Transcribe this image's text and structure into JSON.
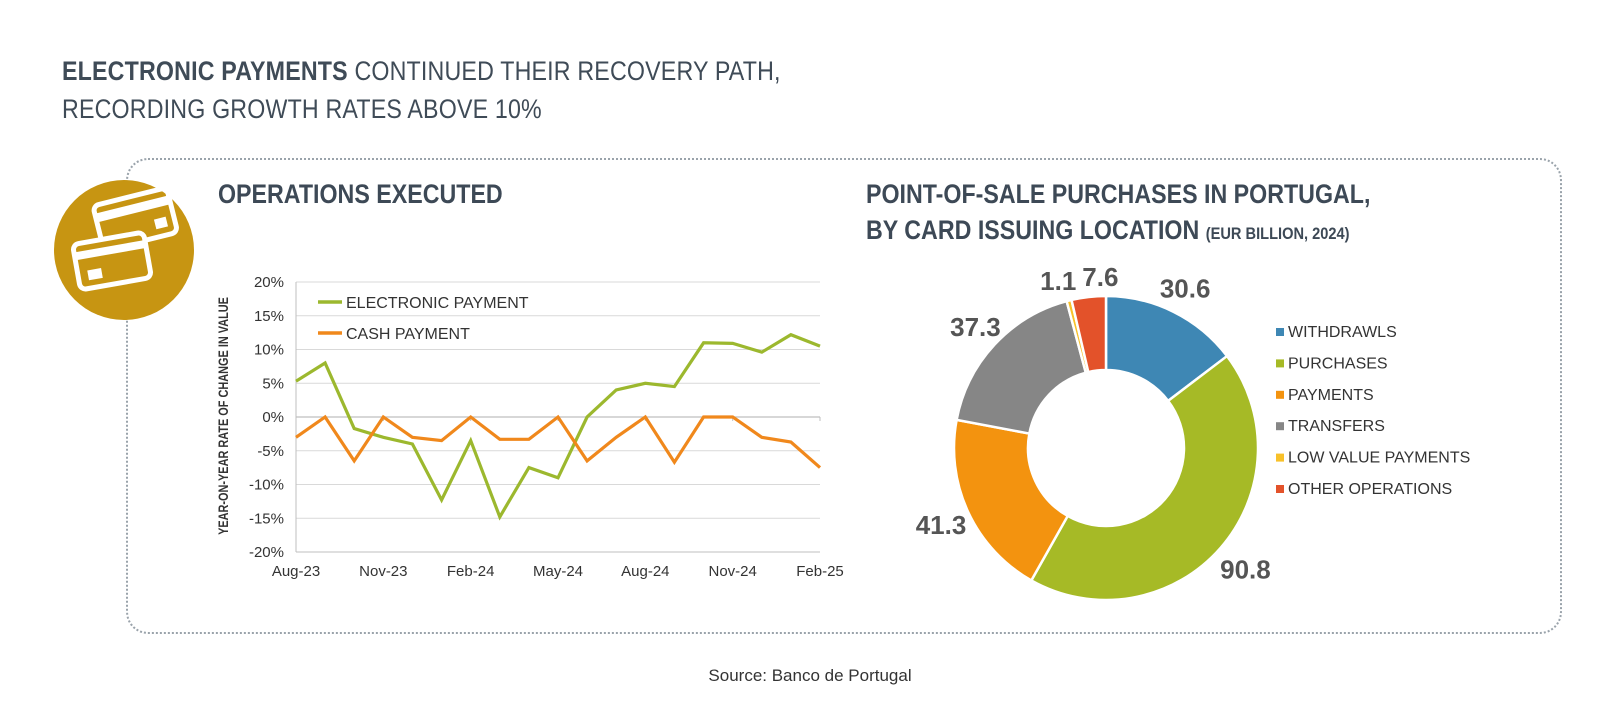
{
  "header": {
    "headline_bold": "ELECTRONIC PAYMENTS",
    "headline_rest": " CONTINUED THEIR RECOVERY PATH,",
    "headline_line2": "RECORDING GROWTH RATES ABOVE 10%"
  },
  "badge": {
    "icon": "credit-cards-icon",
    "color": "#c79512"
  },
  "footer": {
    "source": "Source: Banco de Portugal"
  },
  "chart_data": [
    {
      "type": "line",
      "title": "OPERATIONS EXECUTED",
      "ylabel": "YEAR-ON-YEAR RATE OF CHANGE IN VALUE",
      "xlabel": "",
      "ylim": [
        -20,
        20
      ],
      "yticks": [
        "20%",
        "15%",
        "10%",
        "5%",
        "0%",
        "-5%",
        "-10%",
        "-15%",
        "-20%"
      ],
      "x_tick_labels": [
        "Aug-23",
        "Nov-23",
        "Feb-24",
        "May-24",
        "Aug-24",
        "Nov-24",
        "Feb-25"
      ],
      "x": [
        "Aug-23",
        "Sep-23",
        "Oct-23",
        "Nov-23",
        "Dec-23",
        "Jan-24",
        "Feb-24",
        "Mar-24",
        "Apr-24",
        "May-24",
        "Jun-24",
        "Jul-24",
        "Aug-24",
        "Sep-24",
        "Oct-24",
        "Nov-24",
        "Dec-24",
        "Jan-25",
        "Feb-25"
      ],
      "grid": true,
      "legend_position": "top-left",
      "series": [
        {
          "name": "ELECTRONIC PAYMENT",
          "color": "#9cb82e",
          "values": [
            5.3,
            8.0,
            -1.7,
            -3.0,
            -4.0,
            -12.3,
            -3.5,
            -14.8,
            -7.5,
            -9.0,
            0.0,
            4.0,
            5.0,
            4.5,
            11.0,
            10.9,
            9.6,
            12.2,
            10.5
          ]
        },
        {
          "name": "CASH PAYMENT",
          "color": "#f0881c",
          "values": [
            -3.0,
            0.0,
            -6.5,
            0.0,
            -3.0,
            -3.5,
            0.0,
            -3.3,
            -3.3,
            0.0,
            -6.5,
            -3.0,
            0.0,
            -6.7,
            0.0,
            0.0,
            -3.0,
            -3.7,
            -7.5
          ]
        }
      ]
    },
    {
      "type": "pie",
      "title_line1": "POINT-OF-SALE PURCHASES IN PORTUGAL,",
      "title_line2": "BY CARD ISSUING LOCATION",
      "title_suffix": "(EUR BILLION, 2024)",
      "legend_position": "right",
      "slices": [
        {
          "name": "WITHDRAWLS",
          "value": 30.6,
          "color": "#3e87b4"
        },
        {
          "name": "PURCHASES",
          "value": 90.8,
          "color": "#a6ba26"
        },
        {
          "name": "PAYMENTS",
          "value": 41.3,
          "color": "#f3930f"
        },
        {
          "name": "TRANSFERS",
          "value": 37.3,
          "color": "#868686"
        },
        {
          "name": "LOW VALUE PAYMENTS",
          "value": 1.1,
          "color": "#f8c12a"
        },
        {
          "name": "OTHER OPERATIONS",
          "value": 7.6,
          "color": "#e3522a"
        }
      ]
    }
  ]
}
